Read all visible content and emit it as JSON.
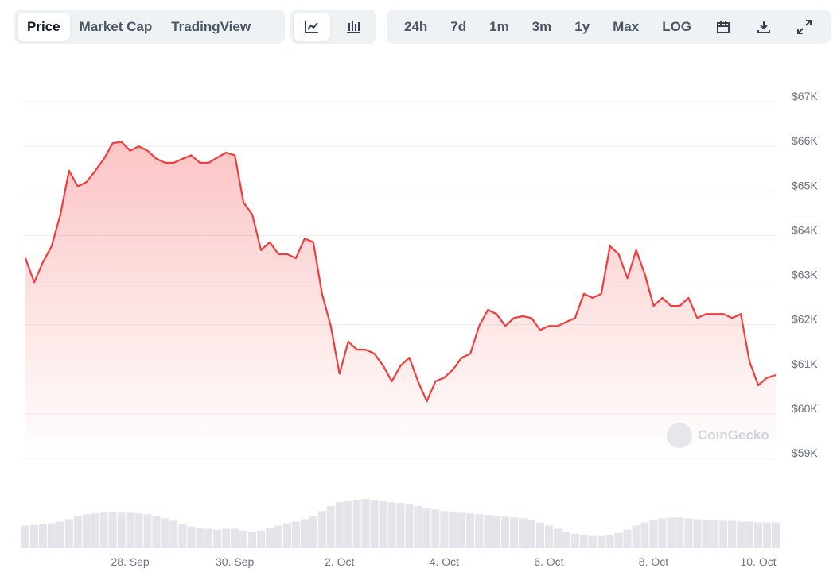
{
  "toolbar": {
    "tabs": [
      "Price",
      "Market Cap",
      "TradingView"
    ],
    "ranges": [
      "24h",
      "7d",
      "1m",
      "3m",
      "1y",
      "Max",
      "LOG"
    ]
  },
  "chart_data": {
    "type": "line",
    "watermark": "CoinGecko",
    "color": "#f23c3c",
    "volume_color": "#e4e5ea",
    "categories": [
      null,
      null,
      null,
      null,
      null,
      null,
      null,
      null,
      null,
      null,
      null,
      null,
      "28. Sep",
      null,
      null,
      null,
      null,
      null,
      null,
      null,
      null,
      null,
      null,
      null,
      "30. Sep",
      null,
      null,
      null,
      null,
      null,
      null,
      null,
      null,
      null,
      null,
      null,
      "2. Oct",
      null,
      null,
      null,
      null,
      null,
      null,
      null,
      null,
      null,
      null,
      null,
      "4. Oct",
      null,
      null,
      null,
      null,
      null,
      null,
      null,
      null,
      null,
      null,
      null,
      "6. Oct",
      null,
      null,
      null,
      null,
      null,
      null,
      null,
      null,
      null,
      null,
      null,
      "8. Oct",
      null,
      null,
      null,
      null,
      null,
      null,
      null,
      null,
      null,
      null,
      null,
      "10. Oct",
      null,
      null
    ],
    "values": [
      63490,
      62950,
      63400,
      63760,
      64470,
      65450,
      65100,
      65200,
      65450,
      65720,
      66070,
      66100,
      65900,
      66000,
      65900,
      65720,
      65630,
      65630,
      65720,
      65800,
      65630,
      65630,
      65750,
      65860,
      65800,
      64740,
      64470,
      63670,
      63850,
      63580,
      63580,
      63490,
      63930,
      63850,
      62690,
      61970,
      60900,
      61620,
      61440,
      61440,
      61350,
      61080,
      60730,
      61080,
      61260,
      60730,
      60280,
      60730,
      60810,
      60990,
      61260,
      61350,
      61970,
      62330,
      62240,
      61970,
      62150,
      62190,
      62150,
      61880,
      61970,
      61970,
      62060,
      62150,
      62690,
      62600,
      62690,
      63760,
      63580,
      63040,
      63670,
      63130,
      62420,
      62600,
      62420,
      62420,
      62600,
      62150,
      62240,
      62240,
      62240,
      62150,
      62240,
      61170,
      60640,
      60810,
      60870
    ],
    "volume": [
      28,
      29,
      30,
      31,
      33,
      36,
      40,
      42,
      43,
      44,
      45,
      44,
      44,
      43,
      42,
      40,
      37,
      34,
      30,
      27,
      25,
      24,
      23,
      24,
      24,
      22,
      20,
      22,
      25,
      28,
      31,
      33,
      36,
      40,
      46,
      52,
      57,
      59,
      60,
      61,
      60,
      59,
      57,
      56,
      54,
      52,
      50,
      48,
      46,
      45,
      44,
      43,
      42,
      41,
      40,
      39,
      38,
      37,
      35,
      32,
      28,
      24,
      20,
      18,
      16,
      15,
      15,
      16,
      19,
      23,
      28,
      32,
      35,
      37,
      38,
      38,
      37,
      36,
      35,
      35,
      34,
      34,
      33,
      33,
      32,
      32,
      32
    ],
    "ylim": [
      59000,
      67000
    ],
    "yticks": [
      {
        "value": 59000,
        "label": "$59K"
      },
      {
        "value": 60000,
        "label": "$60K"
      },
      {
        "value": 61000,
        "label": "$61K"
      },
      {
        "value": 62000,
        "label": "$62K"
      },
      {
        "value": 63000,
        "label": "$63K"
      },
      {
        "value": 64000,
        "label": "$64K"
      },
      {
        "value": 65000,
        "label": "$65K"
      },
      {
        "value": 66000,
        "label": "$66K"
      },
      {
        "value": 67000,
        "label": "$67K"
      }
    ],
    "grid": true
  }
}
